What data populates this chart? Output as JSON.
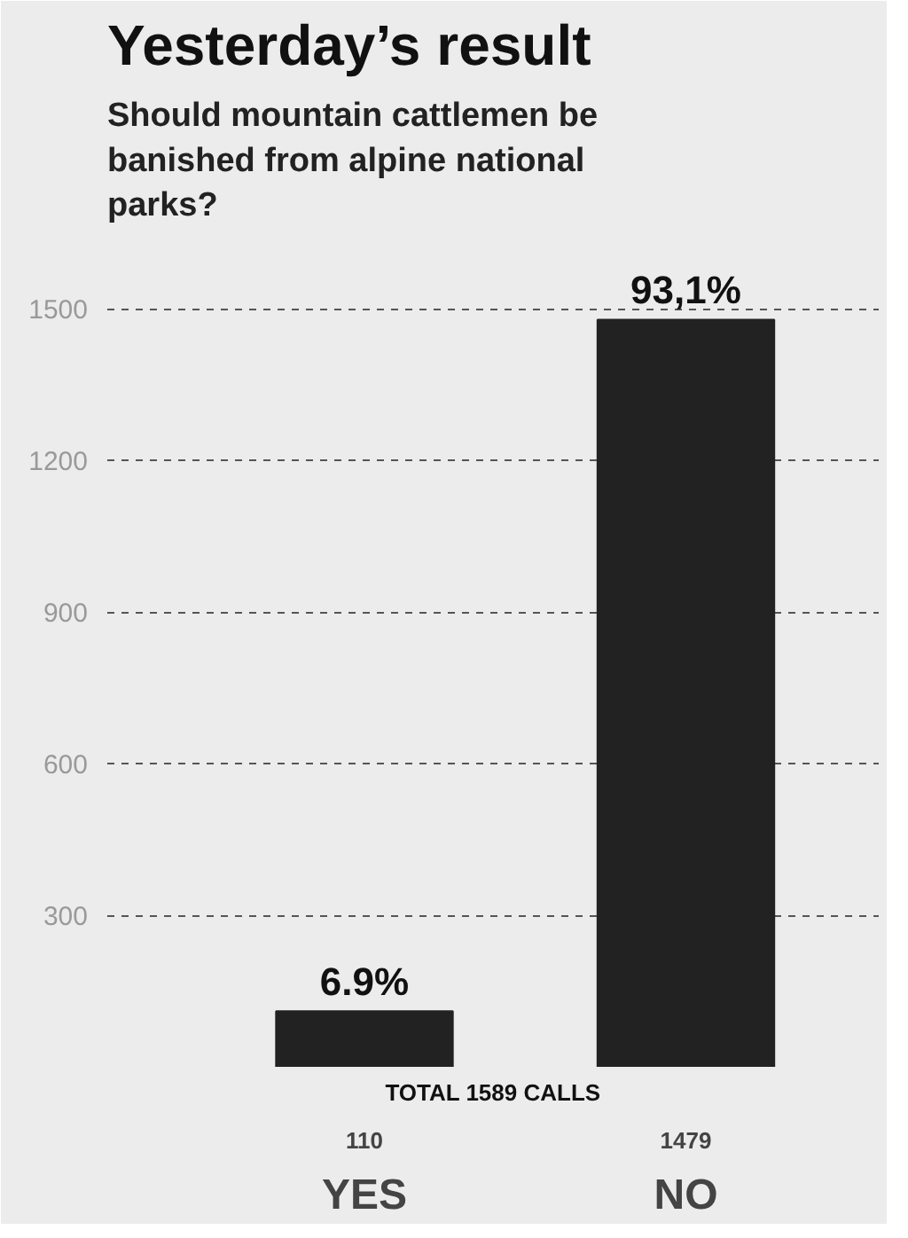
{
  "chart_data": {
    "type": "bar",
    "title": "Yesterday’s result",
    "subtitle": "Should mountain cattlemen be banished from alpine national parks?",
    "categories": [
      "YES",
      "NO"
    ],
    "values": [
      110,
      1479
    ],
    "color": "#222222",
    "value_labels": [
      "110",
      "1479"
    ],
    "ylim": [
      0,
      1650
    ],
    "yticks": [
      300,
      600,
      900,
      1200,
      1500
    ],
    "grid": "y",
    "line_style": "dashed",
    "annotations": [
      {
        "text": "6.9%",
        "x": "YES",
        "y": 110
      },
      {
        "text": "93,1%",
        "x": "NO",
        "y": 1479
      },
      "TOTAL 1589 CALLS"
    ]
  }
}
